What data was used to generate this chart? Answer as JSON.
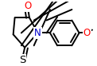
{
  "background_color": "#ffffff",
  "bond_color": "#000000",
  "atom_colors": {
    "O": "#ff0000",
    "N": "#0000cc",
    "S": "#000000",
    "C": "#000000"
  },
  "bond_width": 1.4,
  "dbo": 0.012,
  "font_size": 8.5,
  "figsize": [
    1.22,
    0.83
  ],
  "dpi": 100,
  "xlim": [
    0,
    122
  ],
  "ylim": [
    0,
    83
  ]
}
